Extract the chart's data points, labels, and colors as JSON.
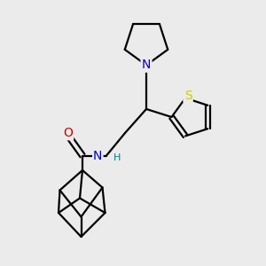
{
  "bg_color": "#ebebeb",
  "bond_color": "#000000",
  "N_color": "#0000cc",
  "NH_color": "#008080",
  "O_color": "#cc0000",
  "S_color": "#cccc00",
  "line_width": 1.6,
  "figsize": [
    3.0,
    3.0
  ],
  "dpi": 100,
  "xlim": [
    0,
    10
  ],
  "ylim": [
    0,
    10
  ]
}
